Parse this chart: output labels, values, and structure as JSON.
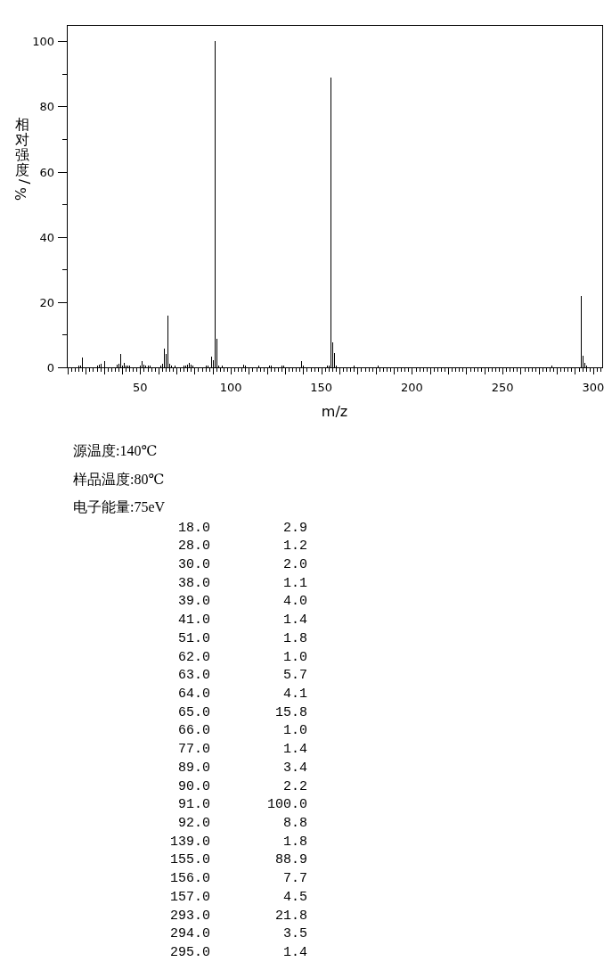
{
  "chart_data": [
    {
      "type": "bar",
      "xlabel": "m/z",
      "ylabel": "相对强度/%",
      "color": "#000000",
      "x": [
        16,
        17,
        18,
        26,
        27,
        28,
        30,
        37,
        38,
        39,
        40,
        41,
        42,
        43,
        44,
        50,
        51,
        52,
        53,
        54,
        55,
        61,
        62,
        63,
        64,
        65,
        66,
        67,
        69,
        74,
        75,
        76,
        77,
        78,
        79,
        86,
        87,
        89,
        90,
        91,
        92,
        93,
        95,
        107,
        108,
        115,
        121,
        122,
        128,
        129,
        139,
        140,
        153,
        154,
        155,
        156,
        157,
        158,
        168,
        181,
        277,
        293,
        294,
        295,
        296
      ],
      "values": [
        0.5,
        0.6,
        2.9,
        0.5,
        0.8,
        1.2,
        2.0,
        0.8,
        1.1,
        4.0,
        0.6,
        1.4,
        0.5,
        0.5,
        0.5,
        0.6,
        1.8,
        0.7,
        0.5,
        0.5,
        0.5,
        0.5,
        1.0,
        5.7,
        4.1,
        15.8,
        1.0,
        0.5,
        0.5,
        0.5,
        0.6,
        0.9,
        1.4,
        0.7,
        0.5,
        0.5,
        0.5,
        3.4,
        2.2,
        100.0,
        8.8,
        0.6,
        0.5,
        0.8,
        0.5,
        0.5,
        0.5,
        0.5,
        0.5,
        0.5,
        1.8,
        0.5,
        0.5,
        0.5,
        88.9,
        7.7,
        4.5,
        0.5,
        0.5,
        0.5,
        0.5,
        21.8,
        3.5,
        1.4,
        0.5
      ],
      "xlim": [
        9.5,
        305
      ],
      "ylim": [
        0,
        105
      ],
      "xticks": [
        {
          "value": 10,
          "label": null
        },
        {
          "value": 12,
          "label": null
        },
        {
          "value": 14,
          "label": null
        },
        {
          "value": 16,
          "label": null
        },
        {
          "value": 18,
          "label": null
        },
        {
          "value": 20,
          "label": null
        },
        {
          "value": 22,
          "label": null
        },
        {
          "value": 24,
          "label": null
        },
        {
          "value": 26,
          "label": null
        },
        {
          "value": 28,
          "label": null
        },
        {
          "value": 30,
          "label": null
        },
        {
          "value": 32,
          "label": null
        },
        {
          "value": 34,
          "label": null
        },
        {
          "value": 36,
          "label": null
        },
        {
          "value": 38,
          "label": null
        },
        {
          "value": 40,
          "label": null
        },
        {
          "value": 42,
          "label": null
        },
        {
          "value": 44,
          "label": null
        },
        {
          "value": 46,
          "label": null
        },
        {
          "value": 48,
          "label": null
        },
        50,
        {
          "value": 52,
          "label": null
        },
        {
          "value": 54,
          "label": null
        },
        {
          "value": 56,
          "label": null
        },
        {
          "value": 58,
          "label": null
        },
        {
          "value": 60,
          "label": null
        },
        {
          "value": 62,
          "label": null
        },
        {
          "value": 64,
          "label": null
        },
        {
          "value": 66,
          "label": null
        },
        {
          "value": 68,
          "label": null
        },
        {
          "value": 70,
          "label": null
        },
        {
          "value": 72,
          "label": null
        },
        {
          "value": 74,
          "label": null
        },
        {
          "value": 76,
          "label": null
        },
        {
          "value": 78,
          "label": null
        },
        {
          "value": 80,
          "label": null
        },
        {
          "value": 82,
          "label": null
        },
        {
          "value": 84,
          "label": null
        },
        {
          "value": 86,
          "label": null
        },
        {
          "value": 88,
          "label": null
        },
        {
          "value": 90,
          "label": null
        },
        {
          "value": 92,
          "label": null
        },
        {
          "value": 94,
          "label": null
        },
        {
          "value": 96,
          "label": null
        },
        {
          "value": 98,
          "label": null
        },
        100,
        {
          "value": 102,
          "label": null
        },
        {
          "value": 104,
          "label": null
        },
        {
          "value": 106,
          "label": null
        },
        {
          "value": 108,
          "label": null
        },
        {
          "value": 110,
          "label": null
        },
        {
          "value": 112,
          "label": null
        },
        {
          "value": 114,
          "label": null
        },
        {
          "value": 116,
          "label": null
        },
        {
          "value": 118,
          "label": null
        },
        {
          "value": 120,
          "label": null
        },
        {
          "value": 122,
          "label": null
        },
        {
          "value": 124,
          "label": null
        },
        {
          "value": 126,
          "label": null
        },
        {
          "value": 128,
          "label": null
        },
        {
          "value": 130,
          "label": null
        },
        {
          "value": 132,
          "label": null
        },
        {
          "value": 134,
          "label": null
        },
        {
          "value": 136,
          "label": null
        },
        {
          "value": 138,
          "label": null
        },
        {
          "value": 140,
          "label": null
        },
        {
          "value": 142,
          "label": null
        },
        {
          "value": 144,
          "label": null
        },
        {
          "value": 146,
          "label": null
        },
        {
          "value": 148,
          "label": null
        },
        150,
        {
          "value": 152,
          "label": null
        },
        {
          "value": 154,
          "label": null
        },
        {
          "value": 156,
          "label": null
        },
        {
          "value": 158,
          "label": null
        },
        {
          "value": 160,
          "label": null
        },
        {
          "value": 162,
          "label": null
        },
        {
          "value": 164,
          "label": null
        },
        {
          "value": 166,
          "label": null
        },
        {
          "value": 168,
          "label": null
        },
        {
          "value": 170,
          "label": null
        },
        {
          "value": 172,
          "label": null
        },
        {
          "value": 174,
          "label": null
        },
        {
          "value": 176,
          "label": null
        },
        {
          "value": 178,
          "label": null
        },
        {
          "value": 180,
          "label": null
        },
        {
          "value": 182,
          "label": null
        },
        {
          "value": 184,
          "label": null
        },
        {
          "value": 186,
          "label": null
        },
        {
          "value": 188,
          "label": null
        },
        {
          "value": 190,
          "label": null
        },
        {
          "value": 192,
          "label": null
        },
        {
          "value": 194,
          "label": null
        },
        {
          "value": 196,
          "label": null
        },
        {
          "value": 198,
          "label": null
        },
        200,
        {
          "value": 202,
          "label": null
        },
        {
          "value": 204,
          "label": null
        },
        {
          "value": 206,
          "label": null
        },
        {
          "value": 208,
          "label": null
        },
        {
          "value": 210,
          "label": null
        },
        {
          "value": 212,
          "label": null
        },
        {
          "value": 214,
          "label": null
        },
        {
          "value": 216,
          "label": null
        },
        {
          "value": 218,
          "label": null
        },
        {
          "value": 220,
          "label": null
        },
        {
          "value": 222,
          "label": null
        },
        {
          "value": 224,
          "label": null
        },
        {
          "value": 226,
          "label": null
        },
        {
          "value": 228,
          "label": null
        },
        {
          "value": 230,
          "label": null
        },
        {
          "value": 232,
          "label": null
        },
        {
          "value": 234,
          "label": null
        },
        {
          "value": 236,
          "label": null
        },
        {
          "value": 238,
          "label": null
        },
        {
          "value": 240,
          "label": null
        },
        {
          "value": 242,
          "label": null
        },
        {
          "value": 244,
          "label": null
        },
        {
          "value": 246,
          "label": null
        },
        {
          "value": 248,
          "label": null
        },
        250,
        {
          "value": 252,
          "label": null
        },
        {
          "value": 254,
          "label": null
        },
        {
          "value": 256,
          "label": null
        },
        {
          "value": 258,
          "label": null
        },
        {
          "value": 260,
          "label": null
        },
        {
          "value": 262,
          "label": null
        },
        {
          "value": 264,
          "label": null
        },
        {
          "value": 266,
          "label": null
        },
        {
          "value": 268,
          "label": null
        },
        {
          "value": 270,
          "label": null
        },
        {
          "value": 272,
          "label": null
        },
        {
          "value": 274,
          "label": null
        },
        {
          "value": 276,
          "label": null
        },
        {
          "value": 278,
          "label": null
        },
        {
          "value": 280,
          "label": null
        },
        {
          "value": 282,
          "label": null
        },
        {
          "value": 284,
          "label": null
        },
        {
          "value": 286,
          "label": null
        },
        {
          "value": 288,
          "label": null
        },
        {
          "value": 290,
          "label": null
        },
        {
          "value": 292,
          "label": null
        },
        {
          "value": 294,
          "label": null
        },
        {
          "value": 296,
          "label": null
        },
        {
          "value": 298,
          "label": null
        },
        300,
        {
          "value": 302,
          "label": null
        },
        {
          "value": 304,
          "label": null
        }
      ],
      "yticks": [
        0,
        {
          "value": 10,
          "label": null
        },
        20,
        {
          "value": 30,
          "label": null
        },
        40,
        {
          "value": 50,
          "label": null
        },
        60,
        {
          "value": 70,
          "label": null
        },
        80,
        {
          "value": 90,
          "label": null
        },
        100
      ]
    },
    {
      "type": "other",
      "annotations": [
        "源温度:140℃",
        "样品温度:80℃",
        "电子能量:75eV"
      ],
      "categories": [
        "18.0",
        "28.0",
        "30.0",
        "38.0",
        "39.0",
        "41.0",
        "51.0",
        "62.0",
        "63.0",
        "64.0",
        "65.0",
        "66.0",
        "77.0",
        "89.0",
        "90.0",
        "91.0",
        "92.0",
        "139.0",
        "155.0",
        "156.0",
        "157.0",
        "293.0",
        "294.0",
        "295.0"
      ],
      "value_labels": [
        "2.9",
        "1.2",
        "2.0",
        "1.1",
        "4.0",
        "1.4",
        "1.8",
        "1.0",
        "5.7",
        "4.1",
        "15.8",
        "1.0",
        "1.4",
        "3.4",
        "2.2",
        "100.0",
        "8.8",
        "1.8",
        "88.9",
        "7.7",
        "4.5",
        "21.8",
        "3.5",
        "1.4"
      ]
    }
  ]
}
